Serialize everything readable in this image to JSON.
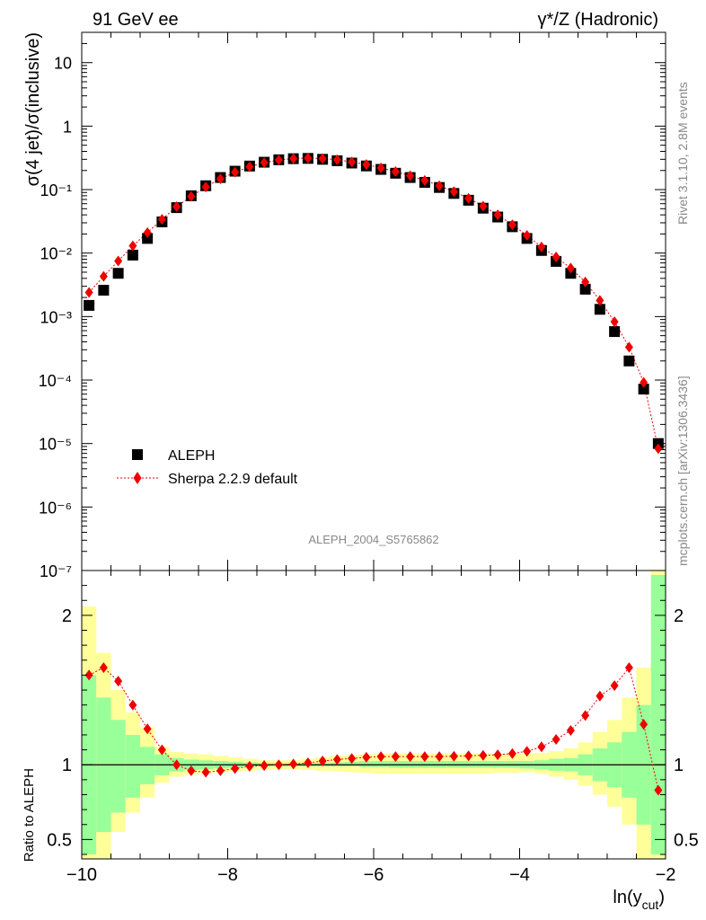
{
  "header": {
    "left": "91 GeV ee",
    "right": "γ*/Z (Hadronic)"
  },
  "side_labels": {
    "rivet": "Rivet 3.1.10,  2.8M events",
    "mcplots": "mcplots.cern.ch [arXiv:1306.3436]"
  },
  "analysis_tag": "ALEPH_2004_S5765862",
  "colors": {
    "data": "#000000",
    "mc": "#ee0000",
    "band_inner": "#99ff99",
    "band_outer": "#ffff99"
  },
  "chart_data": [
    {
      "type": "scatter",
      "panel": "main",
      "ylabel": "σ(4 jet)/σ(inclusive)",
      "y_scale": "log",
      "xlim": [
        -10.0,
        -2.0
      ],
      "ylim": [
        1e-07,
        30
      ],
      "y_ticks": [
        "10⁻⁷",
        "10⁻⁶",
        "10⁻⁵",
        "10⁻⁴",
        "10⁻³",
        "10⁻²",
        "10⁻¹",
        "1",
        "10"
      ],
      "x": [
        -9.9,
        -9.7,
        -9.5,
        -9.3,
        -9.1,
        -8.9,
        -8.7,
        -8.5,
        -8.3,
        -8.1,
        -7.9,
        -7.7,
        -7.5,
        -7.3,
        -7.1,
        -6.9,
        -6.7,
        -6.5,
        -6.3,
        -6.1,
        -5.9,
        -5.7,
        -5.5,
        -5.3,
        -5.1,
        -4.9,
        -4.7,
        -4.5,
        -4.3,
        -4.1,
        -3.9,
        -3.7,
        -3.5,
        -3.3,
        -3.1,
        -2.9,
        -2.7,
        -2.5,
        -2.3,
        -2.1
      ],
      "legend": {
        "position": "bottom-left"
      },
      "series": [
        {
          "name": "ALEPH",
          "marker": "square",
          "values": [
            0.0015,
            0.0026,
            0.0048,
            0.0093,
            0.017,
            0.031,
            0.052,
            0.08,
            0.115,
            0.155,
            0.195,
            0.235,
            0.27,
            0.295,
            0.307,
            0.31,
            0.3,
            0.285,
            0.262,
            0.236,
            0.208,
            0.181,
            0.155,
            0.13,
            0.108,
            0.087,
            0.068,
            0.051,
            0.037,
            0.026,
            0.017,
            0.011,
            0.0074,
            0.0048,
            0.0027,
            0.0013,
            0.00058,
            0.0002,
            7.2e-05,
            1e-05
          ]
        },
        {
          "name": "Sherpa 2.2.9 default",
          "marker": "diamond",
          "values": [
            0.0024,
            0.0043,
            0.0075,
            0.013,
            0.021,
            0.034,
            0.054,
            0.078,
            0.11,
            0.148,
            0.188,
            0.229,
            0.266,
            0.293,
            0.308,
            0.314,
            0.308,
            0.295,
            0.273,
            0.248,
            0.22,
            0.192,
            0.165,
            0.139,
            0.115,
            0.093,
            0.073,
            0.055,
            0.04,
            0.028,
            0.019,
            0.0125,
            0.0087,
            0.0058,
            0.0035,
            0.0018,
            0.00083,
            0.00033,
            9.2e-05,
            8.3e-06
          ]
        }
      ]
    },
    {
      "type": "line",
      "panel": "ratio",
      "xlabel": "ln(y_cut)",
      "ylabel": "Ratio to ALEPH",
      "xlim": [
        -10.0,
        -2.0
      ],
      "ylim": [
        0.37,
        2.3
      ],
      "y_ticks": [
        "0.5",
        "1",
        "2"
      ],
      "x_ticks": [
        "−10",
        "−8",
        "−6",
        "−4",
        "−2"
      ],
      "band_edges": [
        -10.0,
        -9.8,
        -9.6,
        -9.4,
        -9.2,
        -9.0,
        -8.8,
        -8.6,
        -8.4,
        -8.2,
        -8.0,
        -7.8,
        -7.6,
        -7.4,
        -7.2,
        -7.0,
        -6.8,
        -6.6,
        -6.4,
        -6.2,
        -6.0,
        -5.8,
        -5.6,
        -5.4,
        -5.2,
        -5.0,
        -4.8,
        -4.6,
        -4.4,
        -4.2,
        -4.0,
        -3.8,
        -3.6,
        -3.4,
        -3.2,
        -3.0,
        -2.8,
        -2.6,
        -2.4,
        -2.2,
        -2.0
      ],
      "band_inner_lo": [
        0.4,
        0.55,
        0.68,
        0.78,
        0.87,
        0.93,
        0.955,
        0.965,
        0.97,
        0.975,
        0.98,
        0.985,
        0.99,
        0.99,
        0.99,
        0.99,
        0.99,
        0.99,
        0.99,
        0.985,
        0.985,
        0.98,
        0.98,
        0.98,
        0.98,
        0.98,
        0.98,
        0.98,
        0.98,
        0.98,
        0.975,
        0.97,
        0.96,
        0.955,
        0.93,
        0.89,
        0.85,
        0.78,
        0.6,
        0.4
      ],
      "band_inner_hi": [
        1.6,
        1.45,
        1.3,
        1.2,
        1.12,
        1.07,
        1.045,
        1.035,
        1.03,
        1.025,
        1.02,
        1.015,
        1.01,
        1.01,
        1.01,
        1.01,
        1.01,
        1.015,
        1.02,
        1.025,
        1.025,
        1.025,
        1.025,
        1.025,
        1.025,
        1.025,
        1.025,
        1.025,
        1.025,
        1.025,
        1.025,
        1.03,
        1.04,
        1.045,
        1.07,
        1.11,
        1.15,
        1.22,
        1.4,
        2.27
      ],
      "band_outer_lo": [
        0.37,
        0.37,
        0.55,
        0.68,
        0.78,
        0.88,
        0.92,
        0.935,
        0.945,
        0.95,
        0.955,
        0.96,
        0.965,
        0.97,
        0.97,
        0.965,
        0.96,
        0.955,
        0.95,
        0.945,
        0.94,
        0.94,
        0.94,
        0.94,
        0.94,
        0.94,
        0.94,
        0.94,
        0.945,
        0.945,
        0.95,
        0.94,
        0.92,
        0.9,
        0.86,
        0.8,
        0.72,
        0.6,
        0.37,
        0.37
      ],
      "band_outer_hi": [
        2.06,
        1.75,
        1.5,
        1.35,
        1.25,
        1.12,
        1.085,
        1.075,
        1.07,
        1.06,
        1.05,
        1.04,
        1.03,
        1.03,
        1.03,
        1.04,
        1.05,
        1.06,
        1.065,
        1.07,
        1.075,
        1.075,
        1.075,
        1.075,
        1.075,
        1.075,
        1.075,
        1.075,
        1.075,
        1.075,
        1.075,
        1.08,
        1.09,
        1.11,
        1.15,
        1.22,
        1.3,
        1.45,
        1.65,
        2.3
      ],
      "series": [
        {
          "name": "Sherpa 2.2.9 default",
          "values": [
            1.6,
            1.65,
            1.56,
            1.4,
            1.24,
            1.1,
            1.0,
            0.96,
            0.95,
            0.96,
            0.975,
            0.99,
            0.995,
            1.0,
            1.005,
            1.013,
            1.025,
            1.035,
            1.042,
            1.05,
            1.055,
            1.055,
            1.055,
            1.055,
            1.055,
            1.057,
            1.06,
            1.063,
            1.067,
            1.075,
            1.09,
            1.12,
            1.17,
            1.23,
            1.33,
            1.46,
            1.53,
            1.65,
            1.27,
            0.83
          ]
        }
      ]
    }
  ]
}
